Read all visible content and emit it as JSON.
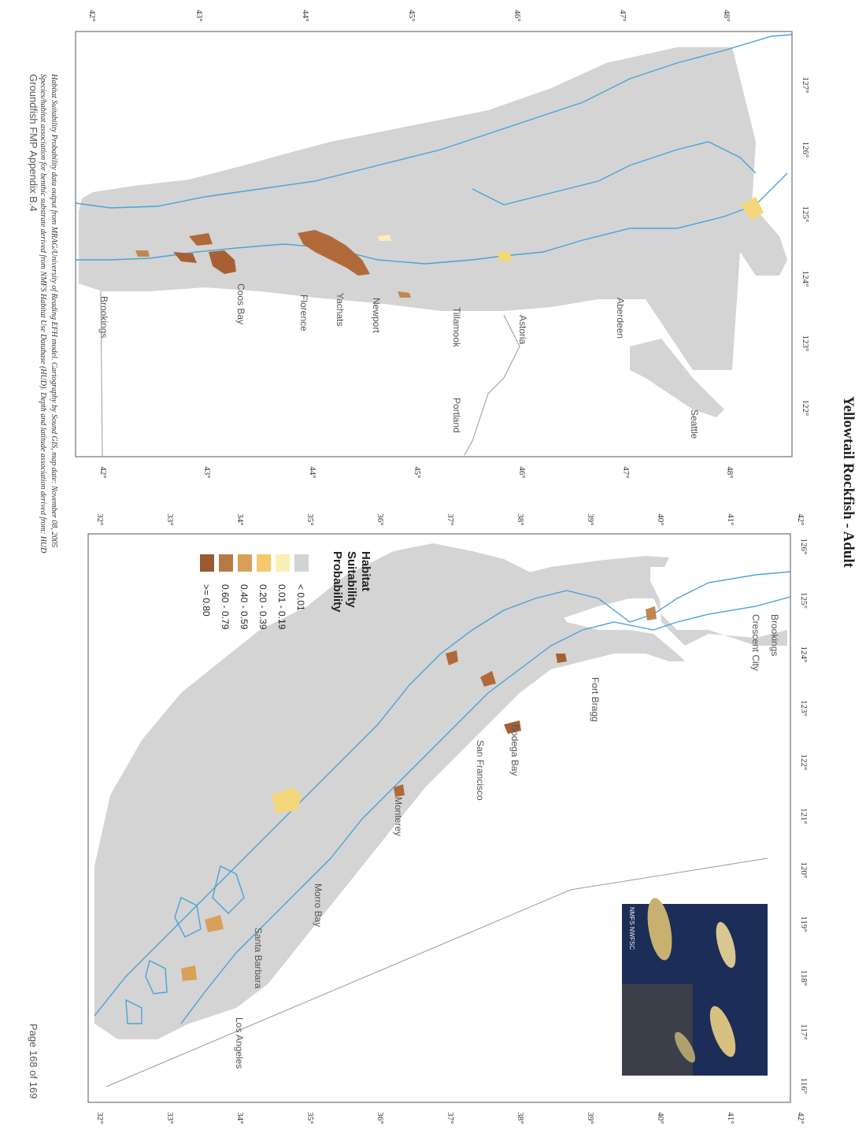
{
  "title": "Yellowtail Rockfish - Adult",
  "north_map": {
    "lon_labels": [
      "127°",
      "126°",
      "125°",
      "124°",
      "123°",
      "122°"
    ],
    "lat_labels": [
      "42°",
      "43°",
      "44°",
      "45°",
      "46°",
      "47°",
      "48°"
    ],
    "cities": [
      "Seattle",
      "Aberdeen",
      "Astoria",
      "Portland",
      "Tillamook",
      "Newport",
      "Yachats",
      "Florence",
      "Coos Bay",
      "Brookings"
    ]
  },
  "south_map": {
    "lon_labels": [
      "126°",
      "125°",
      "124°",
      "123°",
      "122°",
      "121°",
      "120°",
      "119°",
      "118°",
      "117°",
      "116°"
    ],
    "lat_labels": [
      "32°",
      "33°",
      "34°",
      "35°",
      "36°",
      "37°",
      "38°",
      "39°",
      "40°",
      "41°",
      "42°"
    ],
    "cities": [
      "Brookings",
      "Crescent City",
      "Fort Bragg",
      "Bodega Bay",
      "San Francisco",
      "Monterey",
      "Morro Bay",
      "Santa Barbara",
      "Los Angeles"
    ],
    "photo_credit": "NMFS NWFSC"
  },
  "legend": {
    "title_lines": [
      "Habitat",
      "Suitability",
      "Probability"
    ],
    "items": [
      {
        "label": "< 0.01",
        "color": "#d3d3d3"
      },
      {
        "label": "0.01 - 0.19",
        "color": "#fbefb8"
      },
      {
        "label": "0.20 - 0.39",
        "color": "#f3c96a"
      },
      {
        "label": "0.40 - 0.59",
        "color": "#d9a05a"
      },
      {
        "label": "0.60 - 0.79",
        "color": "#b87a45"
      },
      {
        "label": ">= 0.80",
        "color": "#9a5a32"
      }
    ]
  },
  "caption": {
    "line1": "Habitat Suitability Probability data output from MRAG/University of Reading EFH model.   Cartography by Sound GIS, map date: November 08, 2005",
    "line2": "Species/habitat association for benthic substrate derived from NMFS Habitat Use Database (HUD).  Depth and latitude association derived from: HUD"
  },
  "footer": {
    "left": "Groundfish FMP Appendix B.4",
    "right": "Page 168 of 169"
  },
  "colors": {
    "grey_area": "#d4d4d4",
    "isobath": "#4aa3d8",
    "high": "#9a5a32",
    "mid": "#c08850",
    "low": "#f3d77a"
  }
}
